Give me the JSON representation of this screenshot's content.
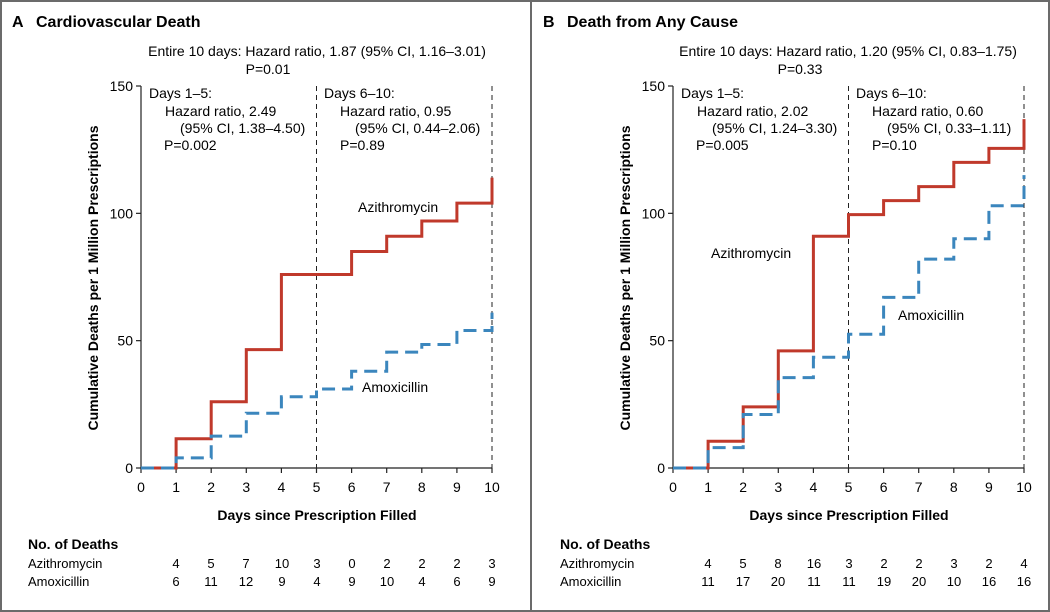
{
  "chart_data": [
    {
      "type": "line",
      "panel_letter": "A",
      "title": "Cardiovascular Death",
      "overall_line1": "Entire 10 days: Hazard ratio, 1.87 (95% CI, 1.16–3.01)",
      "overall_line2": "P=0.01",
      "period1": {
        "heading": "Days 1–5:",
        "hr": "Hazard ratio, 2.49",
        "ci": "(95% CI, 1.38–4.50)",
        "p": "P=0.002"
      },
      "period2": {
        "heading": "Days 6–10:",
        "hr": "Hazard ratio, 0.95",
        "ci": "(95% CI, 0.44–2.06)",
        "p": "P=0.89"
      },
      "xlabel": "Days since Prescription Filled",
      "ylabel": "Cumulative Deaths per 1 Million Prescriptions",
      "xlim": [
        0,
        10
      ],
      "ylim": [
        0,
        150
      ],
      "xticks": [
        "0",
        "1",
        "2",
        "3",
        "4",
        "5",
        "6",
        "7",
        "8",
        "9",
        "10"
      ],
      "yticks": [
        "0",
        "50",
        "100",
        "150"
      ],
      "vlines": [
        5,
        10
      ],
      "series": [
        {
          "name": "Azithromycin",
          "color": "#c0392b",
          "style": "solid",
          "x": [
            0,
            1,
            2,
            3,
            4,
            5,
            6,
            7,
            8,
            9,
            10
          ],
          "values": [
            0,
            11.5,
            26,
            46.5,
            76,
            76,
            85,
            91,
            97,
            104,
            114
          ]
        },
        {
          "name": "Amoxicillin",
          "color": "#3b86bd",
          "style": "dashed",
          "x": [
            0,
            1,
            2,
            3,
            4,
            5,
            6,
            7,
            8,
            9,
            10
          ],
          "values": [
            0,
            4,
            12.5,
            21.5,
            28,
            31,
            38,
            45.5,
            48.5,
            54,
            61
          ]
        }
      ],
      "series_labels": {
        "azithromycin": "Azithromycin",
        "amoxicillin": "Amoxicillin"
      },
      "deaths_table": {
        "title": "No. of Deaths",
        "rows": [
          {
            "label": "Azithromycin",
            "values": [
              "4",
              "5",
              "7",
              "10",
              "3",
              "0",
              "2",
              "2",
              "2",
              "3"
            ]
          },
          {
            "label": "Amoxicillin",
            "values": [
              "6",
              "11",
              "12",
              "9",
              "4",
              "9",
              "10",
              "4",
              "6",
              "9"
            ]
          }
        ]
      }
    },
    {
      "type": "line",
      "panel_letter": "B",
      "title": "Death from Any Cause",
      "overall_line1": "Entire 10 days: Hazard ratio, 1.20 (95% CI, 0.83–1.75)",
      "overall_line2": "P=0.33",
      "period1": {
        "heading": "Days 1–5:",
        "hr": "Hazard ratio, 2.02",
        "ci": "(95% CI, 1.24–3.30)",
        "p": "P=0.005"
      },
      "period2": {
        "heading": "Days 6–10:",
        "hr": "Hazard ratio, 0.60",
        "ci": "(95% CI, 0.33–1.11)",
        "p": "P=0.10"
      },
      "xlabel": "Days since Prescription Filled",
      "ylabel": "Cumulative Deaths per 1 Million Prescriptions",
      "xlim": [
        0,
        10
      ],
      "ylim": [
        0,
        150
      ],
      "xticks": [
        "0",
        "1",
        "2",
        "3",
        "4",
        "5",
        "6",
        "7",
        "8",
        "9",
        "10"
      ],
      "yticks": [
        "0",
        "50",
        "100",
        "150"
      ],
      "vlines": [
        5,
        10
      ],
      "series": [
        {
          "name": "Azithromycin",
          "color": "#c0392b",
          "style": "solid",
          "x": [
            0,
            1,
            2,
            3,
            4,
            5,
            6,
            7,
            8,
            9,
            10
          ],
          "values": [
            0,
            10.5,
            24,
            46,
            91,
            99.5,
            105,
            110.5,
            120,
            125.5,
            137
          ]
        },
        {
          "name": "Amoxicillin",
          "color": "#3b86bd",
          "style": "dashed",
          "x": [
            0,
            1,
            2,
            3,
            4,
            5,
            6,
            7,
            8,
            9,
            10
          ],
          "values": [
            0,
            8,
            21,
            35.5,
            43.5,
            52.5,
            67,
            82,
            90,
            103,
            115
          ]
        }
      ],
      "series_labels": {
        "azithromycin": "Azithromycin",
        "amoxicillin": "Amoxicillin"
      },
      "deaths_table": {
        "title": "No. of Deaths",
        "rows": [
          {
            "label": "Azithromycin",
            "values": [
              "4",
              "5",
              "8",
              "16",
              "3",
              "2",
              "2",
              "3",
              "2",
              "4"
            ]
          },
          {
            "label": "Amoxicillin",
            "values": [
              "11",
              "17",
              "20",
              "11",
              "11",
              "19",
              "20",
              "10",
              "16",
              "16"
            ]
          }
        ]
      }
    }
  ]
}
